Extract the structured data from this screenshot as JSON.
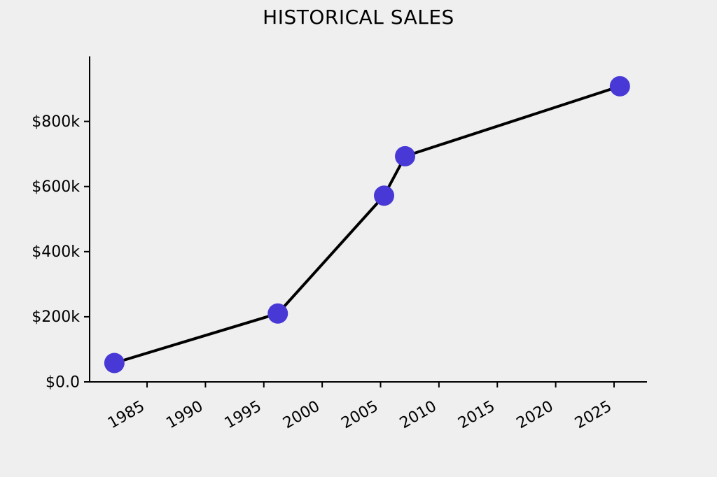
{
  "colors": {
    "background": "#efefef",
    "marker": "#4838d6",
    "line": "#000000",
    "axis": "#000000",
    "text": "#000000"
  },
  "chart_data": {
    "type": "line",
    "title": "HISTORICAL SALES",
    "xlabel": "",
    "ylabel": "",
    "series": [
      {
        "name": "historical-sales",
        "x": [
          1982.2,
          1996.2,
          2005.3,
          2007.1,
          2025.5
        ],
        "y": [
          58000,
          210000,
          572000,
          693000,
          908000
        ],
        "marker": "circle",
        "marker_color": "#4838d6",
        "line_color": "#000000"
      }
    ],
    "x_ticks": [
      1985,
      1990,
      1995,
      2000,
      2005,
      2010,
      2015,
      2020,
      2025
    ],
    "x_tick_labels": [
      "1985",
      "1990",
      "1995",
      "2000",
      "2005",
      "2010",
      "2015",
      "2020",
      "2025"
    ],
    "x_tick_rotation": 30,
    "y_ticks": [
      0,
      200000,
      400000,
      600000,
      800000
    ],
    "y_tick_labels": [
      "$0.0",
      "$200k",
      "$400k",
      "$600k",
      "$800k"
    ],
    "xlim": [
      1980.08,
      2027.82
    ],
    "ylim": [
      0,
      1000000
    ],
    "grid": false,
    "legend": null
  }
}
